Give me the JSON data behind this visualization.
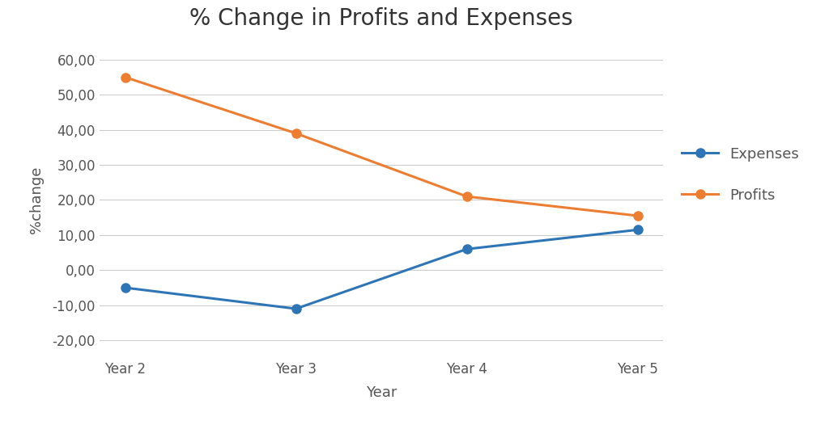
{
  "title": "% Change in Profits and Expenses",
  "xlabel": "Year",
  "ylabel": "%change",
  "categories": [
    "Year 2",
    "Year 3",
    "Year 4",
    "Year 5"
  ],
  "expenses": [
    -5,
    -11,
    6,
    11.5
  ],
  "profits": [
    55,
    39,
    21,
    15.5
  ],
  "expenses_color": "#2E75B6",
  "profits_color": "#ED7D31",
  "ylim": [
    -25,
    65
  ],
  "yticks": [
    -20,
    -10,
    0,
    10,
    20,
    30,
    40,
    50,
    60
  ],
  "legend_labels": [
    "Expenses",
    "Profits"
  ],
  "background_color": "#ffffff",
  "grid_color": "#cccccc",
  "title_fontsize": 20,
  "axis_label_fontsize": 13,
  "tick_fontsize": 12,
  "legend_fontsize": 13,
  "line_width": 2.2,
  "marker": "o",
  "marker_size": 8
}
